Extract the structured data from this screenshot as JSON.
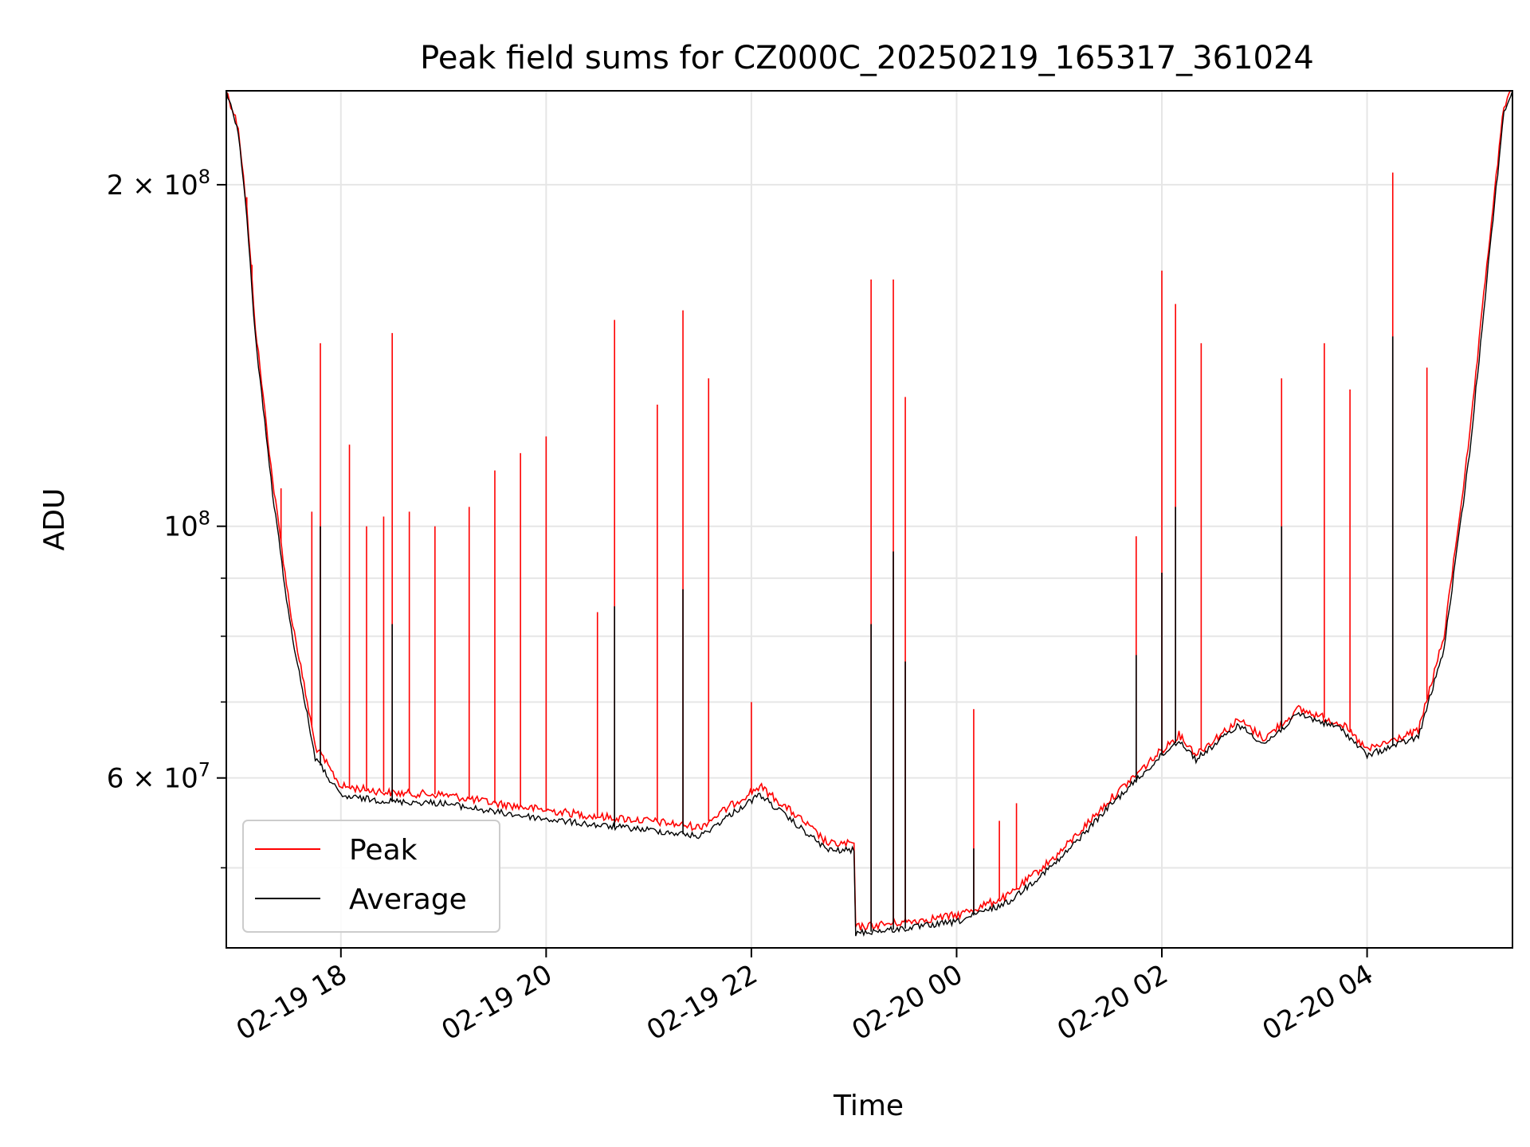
{
  "chart_data": {
    "type": "line",
    "title": "Peak field sums for CZ000C_20250219_165317_361024",
    "xlabel": "Time",
    "ylabel": "ADU",
    "y_scale": "log",
    "x_range": [
      "02-19 16:53",
      "02-20 05:25"
    ],
    "ylim": [
      42500000,
      242000000
    ],
    "x_ticks": [
      {
        "time": "02-19 18:00",
        "label": "02-19 18"
      },
      {
        "time": "02-19 20:00",
        "label": "02-19 20"
      },
      {
        "time": "02-19 22:00",
        "label": "02-19 22"
      },
      {
        "time": "02-20 00:00",
        "label": "02-20 00"
      },
      {
        "time": "02-20 02:00",
        "label": "02-20 02"
      },
      {
        "time": "02-20 04:00",
        "label": "02-20 04"
      }
    ],
    "y_ticks_major": [
      {
        "value": 60000000,
        "label": "6 × 10^7"
      },
      {
        "value": 100000000,
        "label": "10^8"
      },
      {
        "value": 200000000,
        "label": "2 × 10^8"
      }
    ],
    "y_ticks_minor": [
      50000000,
      70000000,
      80000000,
      90000000
    ],
    "grid": true,
    "legend_position": "lower-left",
    "colors": {
      "peak": "#ff0000",
      "average": "#000000",
      "grid": "#e6e6e6"
    },
    "series": [
      {
        "name": "Peak",
        "baseline": [
          [
            "02-19 16:53",
            242000000
          ],
          [
            "02-19 17:00",
            225000000
          ],
          [
            "02-19 17:05",
            190000000
          ],
          [
            "02-19 17:10",
            150000000
          ],
          [
            "02-19 17:20",
            110000000
          ],
          [
            "02-19 17:30",
            85000000
          ],
          [
            "02-19 17:45",
            64000000
          ],
          [
            "02-19 18:00",
            59000000
          ],
          [
            "02-19 18:30",
            58200000
          ],
          [
            "02-19 19:00",
            58000000
          ],
          [
            "02-19 19:30",
            57000000
          ],
          [
            "02-19 20:00",
            56200000
          ],
          [
            "02-19 20:30",
            55500000
          ],
          [
            "02-19 21:00",
            55000000
          ],
          [
            "02-19 21:30",
            54300000
          ],
          [
            "02-19 21:50",
            57000000
          ],
          [
            "02-19 22:05",
            59000000
          ],
          [
            "02-19 22:30",
            55000000
          ],
          [
            "02-19 22:45",
            52500000
          ],
          [
            "02-19 23:00",
            52500000
          ],
          [
            "02-19 23:01",
            44300000
          ],
          [
            "02-19 23:30",
            44800000
          ],
          [
            "02-20 00:00",
            45400000
          ],
          [
            "02-20 00:30",
            47200000
          ],
          [
            "02-20 01:00",
            51500000
          ],
          [
            "02-20 01:30",
            57500000
          ],
          [
            "02-20 02:00",
            63500000
          ],
          [
            "02-20 02:10",
            65500000
          ],
          [
            "02-20 02:20",
            63000000
          ],
          [
            "02-20 02:45",
            67500000
          ],
          [
            "02-20 03:00",
            65000000
          ],
          [
            "02-20 03:20",
            69000000
          ],
          [
            "02-20 03:45",
            67000000
          ],
          [
            "02-20 04:00",
            63500000
          ],
          [
            "02-20 04:30",
            66000000
          ],
          [
            "02-20 04:45",
            80000000
          ],
          [
            "02-20 05:00",
            120000000
          ],
          [
            "02-20 05:10",
            170000000
          ],
          [
            "02-20 05:20",
            235000000
          ],
          [
            "02-20 05:25",
            242000000
          ]
        ],
        "spikes": [
          [
            "02-19 17:05",
            195000000
          ],
          [
            "02-19 17:08",
            170000000
          ],
          [
            "02-19 17:25",
            108000000
          ],
          [
            "02-19 17:43",
            103000000
          ],
          [
            "02-19 17:48",
            145000000
          ],
          [
            "02-19 18:05",
            118000000
          ],
          [
            "02-19 18:15",
            100000000
          ],
          [
            "02-19 18:25",
            102000000
          ],
          [
            "02-19 18:30",
            148000000
          ],
          [
            "02-19 18:40",
            103000000
          ],
          [
            "02-19 18:55",
            100000000
          ],
          [
            "02-19 19:15",
            104000000
          ],
          [
            "02-19 19:30",
            112000000
          ],
          [
            "02-19 19:45",
            116000000
          ],
          [
            "02-19 20:00",
            120000000
          ],
          [
            "02-19 20:30",
            84000000
          ],
          [
            "02-19 20:40",
            152000000
          ],
          [
            "02-19 21:05",
            128000000
          ],
          [
            "02-19 21:20",
            155000000
          ],
          [
            "02-19 21:35",
            135000000
          ],
          [
            "02-19 22:00",
            70000000
          ],
          [
            "02-19 23:10",
            165000000
          ],
          [
            "02-19 23:23",
            165000000
          ],
          [
            "02-19 23:30",
            130000000
          ],
          [
            "02-20 00:10",
            69000000
          ],
          [
            "02-20 00:25",
            55000000
          ],
          [
            "02-20 00:35",
            57000000
          ],
          [
            "02-20 01:45",
            98000000
          ],
          [
            "02-20 02:00",
            168000000
          ],
          [
            "02-20 02:08",
            157000000
          ],
          [
            "02-20 02:23",
            145000000
          ],
          [
            "02-20 03:10",
            135000000
          ],
          [
            "02-20 03:35",
            145000000
          ],
          [
            "02-20 03:50",
            132000000
          ],
          [
            "02-20 04:15",
            205000000
          ],
          [
            "02-20 04:35",
            138000000
          ]
        ]
      },
      {
        "name": "Average",
        "baseline": [
          [
            "02-19 16:53",
            242000000
          ],
          [
            "02-19 17:00",
            223000000
          ],
          [
            "02-19 17:05",
            187000000
          ],
          [
            "02-19 17:10",
            147000000
          ],
          [
            "02-19 17:20",
            107000000
          ],
          [
            "02-19 17:30",
            82500000
          ],
          [
            "02-19 17:45",
            62500000
          ],
          [
            "02-19 18:00",
            57800000
          ],
          [
            "02-19 18:30",
            57200000
          ],
          [
            "02-19 19:00",
            57000000
          ],
          [
            "02-19 19:30",
            56000000
          ],
          [
            "02-19 20:00",
            55200000
          ],
          [
            "02-19 20:30",
            54500000
          ],
          [
            "02-19 21:00",
            54000000
          ],
          [
            "02-19 21:30",
            53300000
          ],
          [
            "02-19 21:50",
            56000000
          ],
          [
            "02-19 22:05",
            58000000
          ],
          [
            "02-19 22:30",
            54000000
          ],
          [
            "02-19 22:45",
            51800000
          ],
          [
            "02-19 23:00",
            51800000
          ],
          [
            "02-19 23:01",
            43800000
          ],
          [
            "02-19 23:30",
            44200000
          ],
          [
            "02-20 00:00",
            44800000
          ],
          [
            "02-20 00:30",
            46600000
          ],
          [
            "02-20 01:00",
            50800000
          ],
          [
            "02-20 01:30",
            56800000
          ],
          [
            "02-20 02:00",
            62800000
          ],
          [
            "02-20 02:10",
            64800000
          ],
          [
            "02-20 02:20",
            62300000
          ],
          [
            "02-20 02:45",
            66800000
          ],
          [
            "02-20 03:00",
            64300000
          ],
          [
            "02-20 03:20",
            68300000
          ],
          [
            "02-20 03:45",
            66300000
          ],
          [
            "02-20 04:00",
            62800000
          ],
          [
            "02-20 04:30",
            65200000
          ],
          [
            "02-20 04:45",
            78000000
          ],
          [
            "02-20 05:00",
            116000000
          ],
          [
            "02-20 05:10",
            165000000
          ],
          [
            "02-20 05:20",
            232000000
          ],
          [
            "02-20 05:25",
            242000000
          ]
        ],
        "spikes": [
          [
            "02-19 17:48",
            100000000
          ],
          [
            "02-19 18:30",
            82000000
          ],
          [
            "02-19 20:40",
            85000000
          ],
          [
            "02-19 21:20",
            88000000
          ],
          [
            "02-19 23:10",
            82000000
          ],
          [
            "02-19 23:23",
            95000000
          ],
          [
            "02-19 23:30",
            76000000
          ],
          [
            "02-20 00:10",
            52000000
          ],
          [
            "02-20 01:45",
            77000000
          ],
          [
            "02-20 02:00",
            91000000
          ],
          [
            "02-20 02:08",
            104000000
          ],
          [
            "02-20 03:10",
            100000000
          ],
          [
            "02-20 04:15",
            147000000
          ]
        ]
      }
    ]
  }
}
